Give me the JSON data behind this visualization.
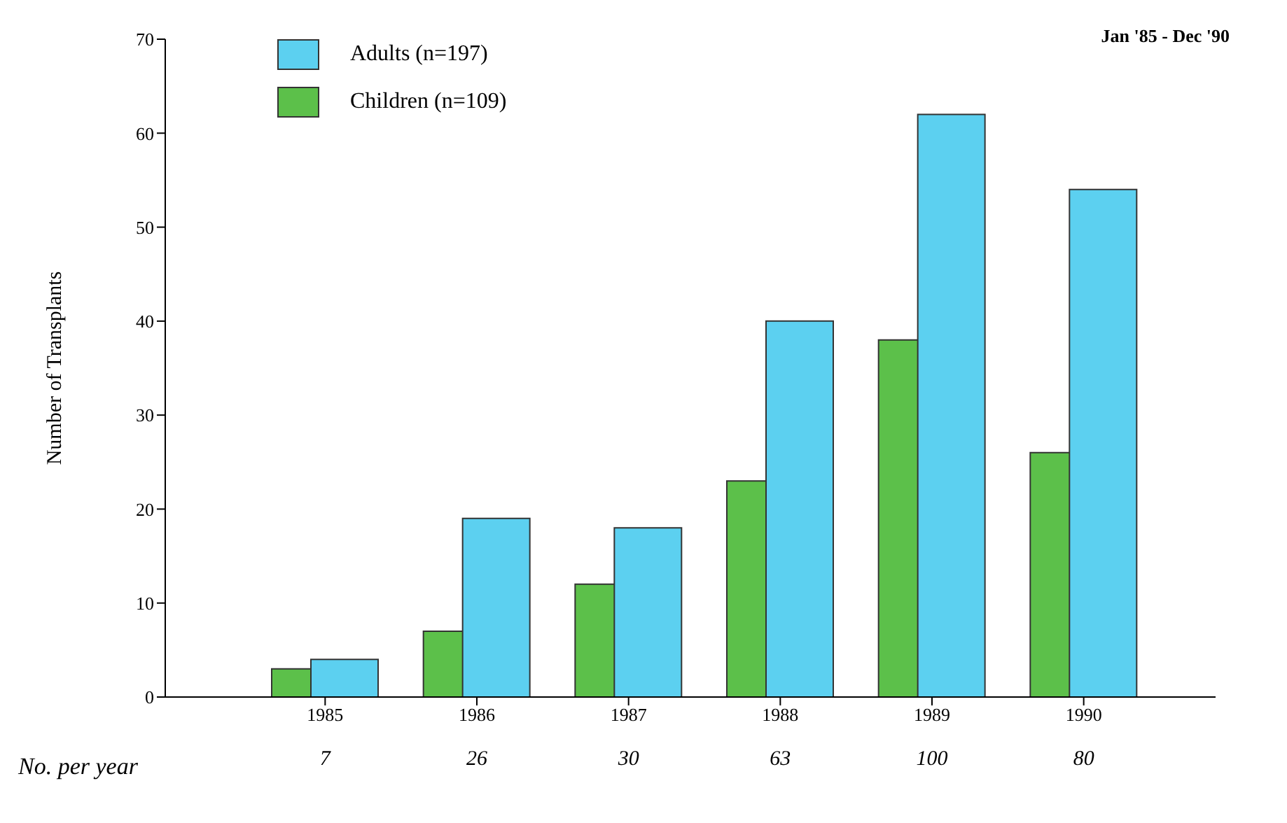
{
  "chart_data": {
    "type": "bar",
    "ylabel": "Number of Transplants",
    "categories": [
      "1985",
      "1986",
      "1987",
      "1988",
      "1989",
      "1990"
    ],
    "series": [
      {
        "name": "Adults (n=197)",
        "color": "#5cd0f0",
        "values": [
          4,
          19,
          18,
          40,
          62,
          54
        ]
      },
      {
        "name": "Children (n=109)",
        "color": "#5cc04a",
        "values": [
          3,
          7,
          12,
          23,
          38,
          26
        ]
      }
    ],
    "ylim": [
      0,
      70
    ],
    "yticks": [
      0,
      10,
      20,
      30,
      40,
      50,
      60,
      70
    ],
    "legend": "top left",
    "totals": [
      "7",
      "26",
      "30",
      "63",
      "100",
      "80"
    ],
    "annotations": [
      "Jan '85 - Dec '90",
      "No. per year"
    ]
  }
}
